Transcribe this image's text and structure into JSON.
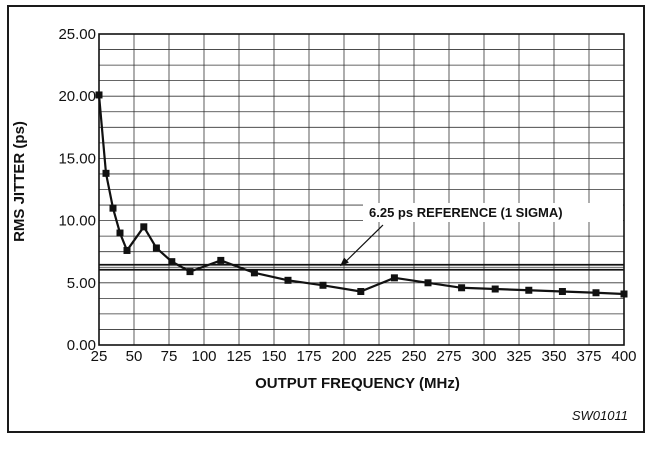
{
  "chart_data": {
    "type": "line",
    "title": "",
    "xlabel": "OUTPUT FREQUENCY (MHz)",
    "ylabel": "RMS JITTER (ps)",
    "xlim": [
      25,
      400
    ],
    "ylim": [
      0,
      25
    ],
    "grid": true,
    "x_ticks": [
      "25",
      "50",
      "75",
      "100",
      "125",
      "150",
      "175",
      "200",
      "225",
      "250",
      "275",
      "300",
      "325",
      "350",
      "375",
      "400"
    ],
    "x_tick_values": [
      25,
      50,
      75,
      100,
      125,
      150,
      175,
      200,
      225,
      250,
      275,
      300,
      325,
      350,
      375,
      400
    ],
    "y_ticks": [
      "0.00",
      "5.00",
      "10.00",
      "15.00",
      "20.00",
      "25.00"
    ],
    "y_tick_values": [
      0,
      5,
      10,
      15,
      20,
      25
    ],
    "series": [
      {
        "x": [
          25,
          30,
          35,
          40,
          45,
          57,
          66,
          77,
          90,
          112,
          136,
          160,
          185,
          212,
          236,
          260,
          284,
          308,
          332,
          356,
          380,
          400
        ],
        "y": [
          20.1,
          13.8,
          11.0,
          9.0,
          7.6,
          9.5,
          7.8,
          6.7,
          5.9,
          6.8,
          5.8,
          5.2,
          4.8,
          4.3,
          5.4,
          5.0,
          4.6,
          4.5,
          4.4,
          4.3,
          4.2,
          4.1
        ]
      }
    ],
    "reference_lines": [
      {
        "label": "6.25 ps REFERENCE (1 SIGMA)",
        "y": 6.25
      }
    ],
    "figure_code": "SW01011"
  }
}
